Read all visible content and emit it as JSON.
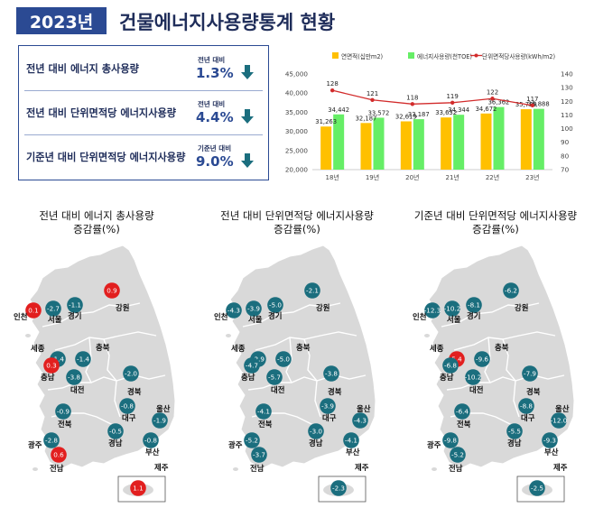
{
  "header": {
    "year_badge": "2023년",
    "title": "건물에너지사용량통계 현황"
  },
  "stats": [
    {
      "label": "전년 대비 에너지 총사용량",
      "compare": "전년 대비",
      "value": "1.3%",
      "direction": "down"
    },
    {
      "label": "전년 대비 단위면적당 에너지사용량",
      "compare": "전년 대비",
      "value": "4.4%",
      "direction": "down"
    },
    {
      "label": "기준년 대비 단위면적당 에너지사용량",
      "compare": "기준년 대비",
      "value": "9.0%",
      "direction": "down"
    }
  ],
  "colors": {
    "brand": "#2b4a93",
    "bar_area": "#ffc000",
    "bar_energy": "#66ee66",
    "line": "#d22b2b",
    "increase": "#e21f1f",
    "decrease": "#1b6e7e",
    "land": "#d9d9d9"
  },
  "chart_data": {
    "type": "bar",
    "categories": [
      "18년",
      "19년",
      "20년",
      "21년",
      "22년",
      "23년"
    ],
    "series": [
      {
        "name": "연면적(십만m2)",
        "kind": "bar",
        "axis": "left",
        "values": [
          31263,
          32187,
          32619,
          33632,
          34672,
          35789
        ]
      },
      {
        "name": "에너지사용량(천TOE)",
        "kind": "bar",
        "axis": "left",
        "values": [
          34442,
          33572,
          33187,
          34344,
          36362,
          35888
        ]
      },
      {
        "name": "단위면적당사용량(kWh/m2)",
        "kind": "line",
        "axis": "right",
        "values": [
          128,
          121,
          118,
          119,
          122,
          117
        ]
      }
    ],
    "ylim_left": [
      20000,
      45000
    ],
    "yticks_left": [
      "20,000",
      "25,000",
      "30,000",
      "35,000",
      "40,000",
      "45,000"
    ],
    "ylim_right": [
      70,
      140
    ],
    "yticks_right": [
      "70",
      "80",
      "90",
      "100",
      "110",
      "120",
      "130",
      "140"
    ],
    "legend": "top"
  },
  "maps": [
    {
      "title_line1": "전년 대비 에너지 총사용량",
      "title_line2": "증감률(%)",
      "regions": [
        {
          "name": "인천",
          "value": "0.1",
          "label": "인천"
        },
        {
          "name": "서울",
          "value": "-2.7",
          "label": "서울"
        },
        {
          "name": "경기",
          "value": "-1.1",
          "label": "경기"
        },
        {
          "name": "강원",
          "value": "0.9",
          "label": "강원"
        },
        {
          "name": "세종",
          "value": "-1.4",
          "label": "세종"
        },
        {
          "name": "충북",
          "value": "-1.4",
          "label": "충북"
        },
        {
          "name": "충남",
          "value": "0.3",
          "label": "충남"
        },
        {
          "name": "대전",
          "value": "-3.8",
          "label": "대전"
        },
        {
          "name": "경북",
          "value": "-2.0",
          "label": "경북"
        },
        {
          "name": "대구",
          "value": "-0.8",
          "label": "대구"
        },
        {
          "name": "울산",
          "value": "-1.9",
          "label": "울산"
        },
        {
          "name": "전북",
          "value": "-0.9",
          "label": "전북"
        },
        {
          "name": "경남",
          "value": "-0.5",
          "label": "경남"
        },
        {
          "name": "부산",
          "value": "-0.8",
          "label": "부산"
        },
        {
          "name": "광주",
          "value": "-2.8",
          "label": "광주"
        },
        {
          "name": "전남",
          "value": "0.6",
          "label": "전남"
        },
        {
          "name": "제주",
          "value": "1.1",
          "label": "제주"
        }
      ]
    },
    {
      "title_line1": "전년 대비 단위면적당 에너지사용량",
      "title_line2": "증감률(%)",
      "regions": [
        {
          "name": "인천",
          "value": "-4.3",
          "label": "인천"
        },
        {
          "name": "서울",
          "value": "-3.9",
          "label": "서울"
        },
        {
          "name": "경기",
          "value": "-5.0",
          "label": "경기"
        },
        {
          "name": "강원",
          "value": "-2.1",
          "label": "강원"
        },
        {
          "name": "세종",
          "value": "-2.9",
          "label": "세종"
        },
        {
          "name": "충북",
          "value": "-5.0",
          "label": "충북"
        },
        {
          "name": "충남",
          "value": "-4.7",
          "label": "충남"
        },
        {
          "name": "대전",
          "value": "-5.7",
          "label": "대전"
        },
        {
          "name": "경북",
          "value": "-3.8",
          "label": "경북"
        },
        {
          "name": "대구",
          "value": "-3.9",
          "label": "대구"
        },
        {
          "name": "울산",
          "value": "-4.3",
          "label": "울산"
        },
        {
          "name": "전북",
          "value": "-4.1",
          "label": "전북"
        },
        {
          "name": "경남",
          "value": "-3.0",
          "label": "경남"
        },
        {
          "name": "부산",
          "value": "-4.1",
          "label": "부산"
        },
        {
          "name": "광주",
          "value": "-5.2",
          "label": "광주"
        },
        {
          "name": "전남",
          "value": "-3.7",
          "label": "전남"
        },
        {
          "name": "제주",
          "value": "-2.3",
          "label": "제주"
        }
      ]
    },
    {
      "title_line1": "기준년 대비 단위면적당 에너지사용량",
      "title_line2": "증감률(%)",
      "regions": [
        {
          "name": "인천",
          "value": "-12.3",
          "label": "인천"
        },
        {
          "name": "서울",
          "value": "-10.2",
          "label": "서울"
        },
        {
          "name": "경기",
          "value": "-8.1",
          "label": "경기"
        },
        {
          "name": "강원",
          "value": "-6.2",
          "label": "강원"
        },
        {
          "name": "세종",
          "value": "5.4",
          "label": "세종"
        },
        {
          "name": "충북",
          "value": "-9.6",
          "label": "충북"
        },
        {
          "name": "충남",
          "value": "-6.8",
          "label": "충남"
        },
        {
          "name": "대전",
          "value": "-10.2",
          "label": "대전"
        },
        {
          "name": "경북",
          "value": "-7.9",
          "label": "경북"
        },
        {
          "name": "대구",
          "value": "-8.8",
          "label": "대구"
        },
        {
          "name": "울산",
          "value": "-12.0",
          "label": "울산"
        },
        {
          "name": "전북",
          "value": "-6.4",
          "label": "전북"
        },
        {
          "name": "경남",
          "value": "-5.5",
          "label": "경남"
        },
        {
          "name": "부산",
          "value": "-9.3",
          "label": "부산"
        },
        {
          "name": "광주",
          "value": "-9.8",
          "label": "광주"
        },
        {
          "name": "전남",
          "value": "-5.2",
          "label": "전남"
        },
        {
          "name": "제주",
          "value": "-2.5",
          "label": "제주"
        }
      ]
    }
  ]
}
